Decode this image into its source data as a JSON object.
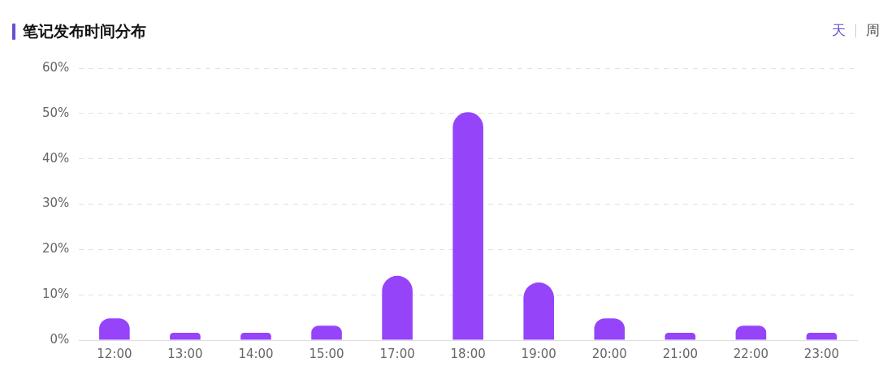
{
  "chart_data": {
    "type": "bar",
    "title": "笔记发布时间分布",
    "categories": [
      "12:00",
      "13:00",
      "14:00",
      "15:00",
      "17:00",
      "18:00",
      "19:00",
      "20:00",
      "21:00",
      "22:00",
      "23:00"
    ],
    "values": [
      4.8,
      1.6,
      1.6,
      3.2,
      14.2,
      50.3,
      12.7,
      4.8,
      1.6,
      3.2,
      1.6
    ],
    "color": "#9544f9",
    "ylim": [
      0,
      60
    ],
    "yticks": [
      {
        "value": 0,
        "label": "0%"
      },
      {
        "value": 10,
        "label": "10%"
      },
      {
        "value": 20,
        "label": "20%"
      },
      {
        "value": 30,
        "label": "30%"
      },
      {
        "value": 40,
        "label": "40%"
      },
      {
        "value": 50,
        "label": "50%"
      },
      {
        "value": 60,
        "label": "60%"
      }
    ],
    "grid": "y",
    "legend": false,
    "annotations": [
      "天",
      "周"
    ]
  }
}
